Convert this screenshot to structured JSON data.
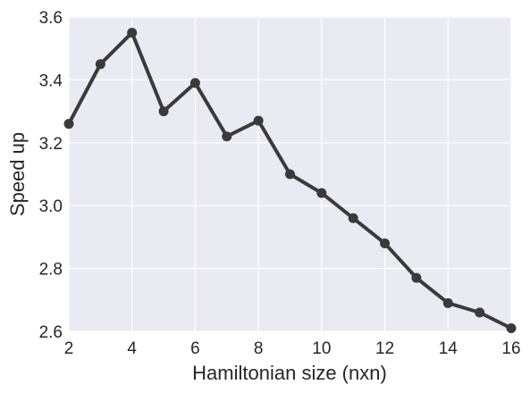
{
  "chart_data": {
    "type": "line",
    "title": "",
    "xlabel": "Hamiltonian size (nxn)",
    "ylabel": "Speed up",
    "xlim": [
      2,
      16
    ],
    "ylim": [
      2.6,
      3.6
    ],
    "xticks": [
      "2",
      "4",
      "6",
      "8",
      "10",
      "12",
      "14",
      "16"
    ],
    "yticks": [
      "2.6",
      "2.8",
      "3.0",
      "3.2",
      "3.4",
      "3.6"
    ],
    "grid": true,
    "series": [
      {
        "x": [
          2,
          3,
          4,
          5,
          6,
          7,
          8,
          9,
          10,
          11,
          12,
          13,
          14,
          15,
          16
        ],
        "y": [
          3.26,
          3.45,
          3.55,
          3.3,
          3.39,
          3.22,
          3.27,
          3.1,
          3.04,
          2.96,
          2.88,
          2.77,
          2.69,
          2.66,
          2.61
        ],
        "color": "#3a3a3a"
      }
    ],
    "background": "#eaeaf2"
  }
}
